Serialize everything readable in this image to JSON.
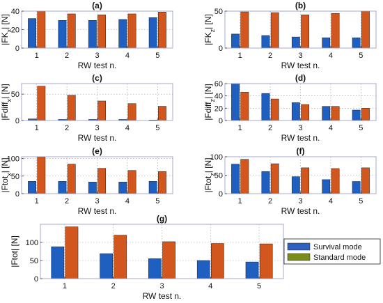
{
  "figure": {
    "background": "#ffffff"
  },
  "legend": {
    "entries": [
      {
        "name": "Survival mode",
        "color": "#2f5fbf"
      },
      {
        "name": "Standard mode",
        "color": "#7a8c1c"
      }
    ]
  },
  "chart_data": [
    {
      "type": "bar",
      "title": "(a)",
      "xlabel": "RW test n.",
      "ylabel": "|FK_x| [N]",
      "categories": [
        "1",
        "2",
        "3",
        "4",
        "5"
      ],
      "ylim": [
        0,
        40
      ],
      "yticks": [
        0,
        20,
        40
      ],
      "grid": true,
      "series": [
        {
          "name": "Survival mode",
          "values": [
            32,
            30,
            30,
            31,
            33
          ],
          "color": "#1f5fbf"
        },
        {
          "name": "Standard mode",
          "values": [
            40,
            37,
            36,
            37,
            39
          ],
          "color": "#d2571e"
        }
      ]
    },
    {
      "type": "bar",
      "title": "(b)",
      "xlabel": "RW test n.",
      "ylabel": "|FK_z| [N]",
      "categories": [
        "1",
        "2",
        "3",
        "4",
        "5"
      ],
      "ylim": [
        0,
        50
      ],
      "yticks": [
        0,
        50
      ],
      "grid": true,
      "series": [
        {
          "name": "Survival mode",
          "values": [
            19,
            17,
            15,
            14,
            14
          ],
          "color": "#1f5fbf"
        },
        {
          "name": "Standard mode",
          "values": [
            49,
            48,
            45,
            47,
            52
          ],
          "color": "#d2571e"
        }
      ]
    },
    {
      "type": "bar",
      "title": "(c)",
      "xlabel": "RW test n.",
      "ylabel": "|Fdiff_x| [N]",
      "categories": [
        "1",
        "2",
        "3",
        "4",
        "5"
      ],
      "ylim": [
        0,
        70
      ],
      "yticks": [
        0,
        50
      ],
      "grid": true,
      "series": [
        {
          "name": "Survival mode",
          "values": [
            3,
            2,
            2,
            2,
            1
          ],
          "color": "#1f5fbf"
        },
        {
          "name": "Standard mode",
          "values": [
            65,
            48,
            37,
            32,
            27
          ],
          "color": "#d2571e"
        }
      ]
    },
    {
      "type": "bar",
      "title": "(d)",
      "xlabel": "RW test n.",
      "ylabel": "|Fdiff_z| [N]",
      "categories": [
        "1",
        "2",
        "3",
        "4",
        "5"
      ],
      "ylim": [
        0,
        60
      ],
      "yticks": [
        0,
        20,
        40,
        60
      ],
      "grid": true,
      "series": [
        {
          "name": "Survival mode",
          "values": [
            62,
            44,
            29,
            23,
            17
          ],
          "color": "#1f5fbf"
        },
        {
          "name": "Standard mode",
          "values": [
            46,
            35,
            26,
            23,
            20
          ],
          "color": "#d2571e"
        }
      ]
    },
    {
      "type": "bar",
      "title": "(e)",
      "xlabel": "RW test n.",
      "ylabel": "|Ftot_x| [N]",
      "categories": [
        "1",
        "2",
        "3",
        "4",
        "5"
      ],
      "ylim": [
        0,
        105
      ],
      "yticks": [
        0,
        50,
        100
      ],
      "grid": true,
      "series": [
        {
          "name": "Survival mode",
          "values": [
            35,
            35,
            33,
            33,
            35
          ],
          "color": "#1f5fbf"
        },
        {
          "name": "Standard mode",
          "values": [
            104,
            84,
            72,
            66,
            63
          ],
          "color": "#d2571e"
        }
      ]
    },
    {
      "type": "bar",
      "title": "(f)",
      "xlabel": "RW test n.",
      "ylabel": "|Ftot_z| [N]",
      "categories": [
        "1",
        "2",
        "3",
        "4",
        "5"
      ],
      "ylim": [
        0,
        100
      ],
      "yticks": [
        0,
        50,
        100
      ],
      "grid": true,
      "series": [
        {
          "name": "Survival mode",
          "values": [
            80,
            60,
            46,
            38,
            33
          ],
          "color": "#1f5fbf"
        },
        {
          "name": "Standard mode",
          "values": [
            93,
            81,
            70,
            68,
            70
          ],
          "color": "#d2571e"
        }
      ]
    },
    {
      "type": "bar",
      "title": "(g)",
      "xlabel": "RW test n.",
      "ylabel": "|Ftot| [N]",
      "categories": [
        "1",
        "2",
        "3",
        "4",
        "5"
      ],
      "ylim": [
        0,
        150
      ],
      "yticks": [
        0,
        50,
        100
      ],
      "grid": true,
      "series": [
        {
          "name": "Survival mode",
          "values": [
            88,
            69,
            55,
            50,
            46
          ],
          "color": "#1f5fbf"
        },
        {
          "name": "Standard mode",
          "values": [
            143,
            120,
            102,
            97,
            96
          ],
          "color": "#d2571e"
        }
      ]
    }
  ]
}
